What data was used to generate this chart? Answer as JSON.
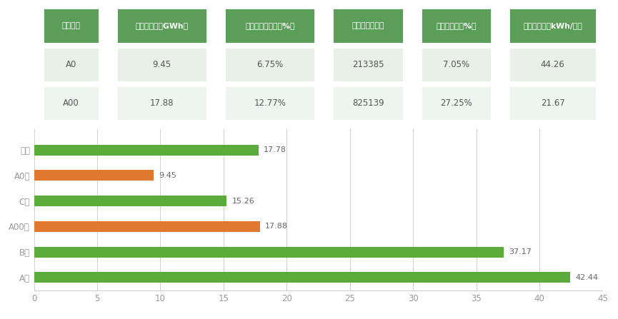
{
  "table": {
    "headers": [
      "车型级别",
      "装机总电量（GWh）",
      "装机总电量占比（%）",
      "装机量（万台）",
      "装机量占比（%）",
      "单车带电量（kWh/台）"
    ],
    "rows": [
      [
        "A0",
        "9.45",
        "6.75%",
        "213385",
        "7.05%",
        "44.26"
      ],
      [
        "A00",
        "17.88",
        "12.77%",
        "825139",
        "27.25%",
        "21.67"
      ]
    ],
    "header_bg": "#5a9e5a",
    "header_text": "#ffffff",
    "row_bg": [
      "#e8f0e8",
      "#eef4ee"
    ],
    "row_text": "#555555",
    "col_widths": [
      0.13,
      0.19,
      0.19,
      0.155,
      0.155,
      0.185
    ]
  },
  "bars": {
    "categories_top_to_bottom": [
      "其他",
      "A0级",
      "C级",
      "A00级",
      "B级",
      "A级"
    ],
    "values_top_to_bottom": [
      17.78,
      9.45,
      15.26,
      17.88,
      37.17,
      42.44
    ],
    "colors_top_to_bottom": [
      "#5aaa3c",
      "#e07830",
      "#5aaa3c",
      "#e07830",
      "#5aaa3c",
      "#5aaa3c"
    ],
    "xlim": [
      0,
      45
    ],
    "xticks": [
      0,
      5,
      10,
      15,
      20,
      25,
      30,
      35,
      40,
      45
    ],
    "grid_color": "#d0d0d0",
    "bar_height": 0.42,
    "label_fontsize": 8,
    "tick_fontsize": 8.5,
    "ylabel_fontsize": 8.5
  },
  "background_color": "#ffffff"
}
